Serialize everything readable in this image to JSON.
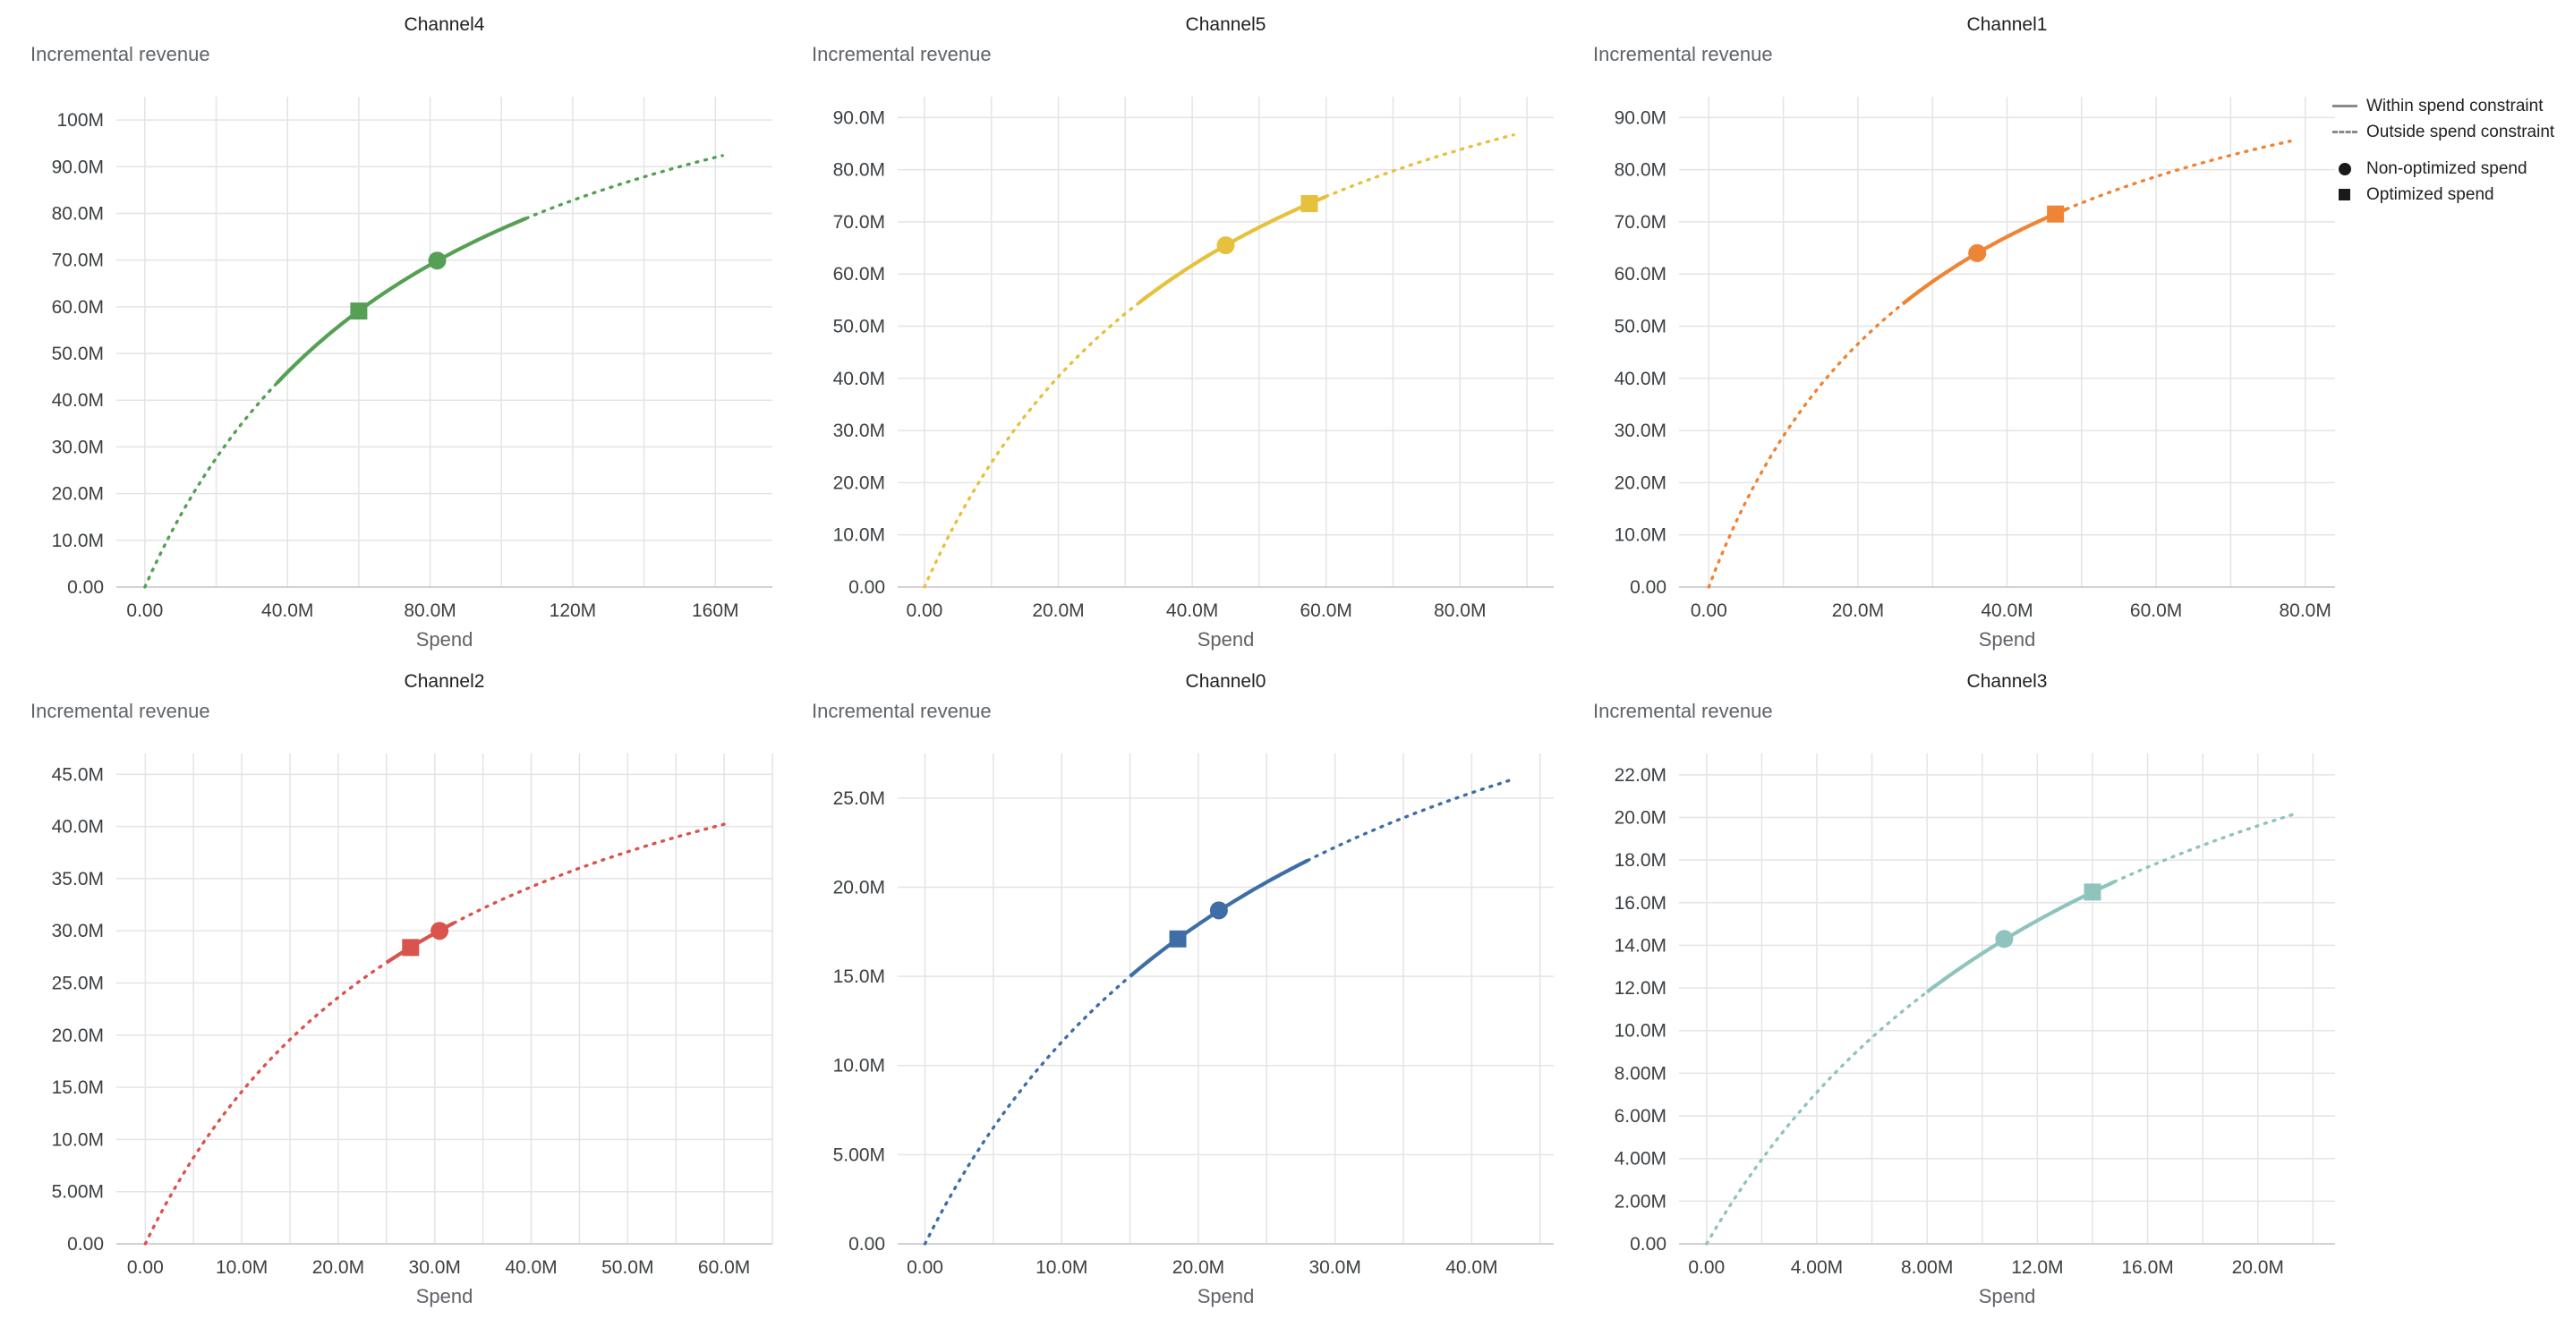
{
  "legend": {
    "within": "Within spend constraint",
    "outside": "Outside spend constraint",
    "non_optimized": "Non-optimized spend",
    "optimized": "Optimized spend",
    "line_color": "#8a8a8a",
    "marker_color": "#1a1a1a"
  },
  "chart_data": [
    {
      "type": "line",
      "title": "Channel4",
      "color": "#55a055",
      "xlabel": "Spend",
      "ylabel": "Incremental revenue",
      "x_range": [
        -8,
        176
      ],
      "y_range": [
        0,
        105
      ],
      "x_grid_step": 20,
      "x_ticks": [
        {
          "v": 0,
          "t": "0.00"
        },
        {
          "v": 40,
          "t": "40.0M"
        },
        {
          "v": 80,
          "t": "80.0M"
        },
        {
          "v": 120,
          "t": "120M"
        },
        {
          "v": 160,
          "t": "160M"
        }
      ],
      "y_ticks": [
        {
          "v": 0,
          "t": "0.00"
        },
        {
          "v": 10,
          "t": "10.0M"
        },
        {
          "v": 20,
          "t": "20.0M"
        },
        {
          "v": 30,
          "t": "30.0M"
        },
        {
          "v": 40,
          "t": "40.0M"
        },
        {
          "v": 50,
          "t": "50.0M"
        },
        {
          "v": 60,
          "t": "60.0M"
        },
        {
          "v": 70,
          "t": "70.0M"
        },
        {
          "v": 80,
          "t": "80.0M"
        },
        {
          "v": 90,
          "t": "90.0M"
        },
        {
          "v": 100,
          "t": "100M"
        }
      ],
      "curve": {
        "model": "hill: y = ymax*x/(x+k), units millions",
        "ymax": 138,
        "k": 80,
        "x_start": 0,
        "x_end": 162,
        "end_y": 92.4
      },
      "within_spend_constraint_range": [
        37,
        107
      ],
      "markers": {
        "non_optimized_spend": {
          "x": 82,
          "y": 69.9
        },
        "optimized_spend": {
          "x": 60,
          "y": 59.1
        }
      }
    },
    {
      "type": "line",
      "title": "Channel5",
      "color": "#e5c13d",
      "xlabel": "Spend",
      "ylabel": "Incremental revenue",
      "x_range": [
        -4,
        94
      ],
      "y_range": [
        0,
        94
      ],
      "x_grid_step": 10,
      "x_ticks": [
        {
          "v": 0,
          "t": "0.00"
        },
        {
          "v": 20,
          "t": "20.0M"
        },
        {
          "v": 40,
          "t": "40.0M"
        },
        {
          "v": 60,
          "t": "60.0M"
        },
        {
          "v": 80,
          "t": "80.0M"
        }
      ],
      "y_ticks": [
        {
          "v": 0,
          "t": "0.00"
        },
        {
          "v": 10,
          "t": "10.0M"
        },
        {
          "v": 20,
          "t": "20.0M"
        },
        {
          "v": 30,
          "t": "30.0M"
        },
        {
          "v": 40,
          "t": "40.0M"
        },
        {
          "v": 50,
          "t": "50.0M"
        },
        {
          "v": 60,
          "t": "60.0M"
        },
        {
          "v": 70,
          "t": "70.0M"
        },
        {
          "v": 80,
          "t": "80.0M"
        },
        {
          "v": 90,
          "t": "90.0M"
        }
      ],
      "curve": {
        "model": "hill: y = ymax*x/(x+k), units millions",
        "ymax": 131,
        "k": 45,
        "x_start": 0,
        "x_end": 88,
        "end_y": 86.7
      },
      "within_spend_constraint_range": [
        32,
        60
      ],
      "markers": {
        "non_optimized_spend": {
          "x": 45,
          "y": 65.5
        },
        "optimized_spend": {
          "x": 57.5,
          "y": 73.5
        }
      }
    },
    {
      "type": "line",
      "title": "Channel1",
      "color": "#ee8435",
      "xlabel": "Spend",
      "ylabel": "Incremental revenue",
      "x_range": [
        -4,
        84
      ],
      "y_range": [
        0,
        94
      ],
      "x_grid_step": 10,
      "x_ticks": [
        {
          "v": 0,
          "t": "0.00"
        },
        {
          "v": 20,
          "t": "20.0M"
        },
        {
          "v": 40,
          "t": "40.0M"
        },
        {
          "v": 60,
          "t": "60.0M"
        },
        {
          "v": 80,
          "t": "80.0M"
        }
      ],
      "y_ticks": [
        {
          "v": 0,
          "t": "0.00"
        },
        {
          "v": 10,
          "t": "10.0M"
        },
        {
          "v": 20,
          "t": "20.0M"
        },
        {
          "v": 30,
          "t": "30.0M"
        },
        {
          "v": 40,
          "t": "40.0M"
        },
        {
          "v": 50,
          "t": "50.0M"
        },
        {
          "v": 60,
          "t": "60.0M"
        },
        {
          "v": 70,
          "t": "70.0M"
        },
        {
          "v": 80,
          "t": "80.0M"
        },
        {
          "v": 90,
          "t": "90.0M"
        }
      ],
      "curve": {
        "model": "hill: y = ymax*x/(x+k), units millions",
        "ymax": 120,
        "k": 31.5,
        "x_start": 0,
        "x_end": 78,
        "end_y": 85.5
      },
      "within_spend_constraint_range": [
        26,
        48
      ],
      "markers": {
        "non_optimized_spend": {
          "x": 36,
          "y": 64.0
        },
        "optimized_spend": {
          "x": 46.5,
          "y": 71.5
        }
      }
    },
    {
      "type": "line",
      "title": "Channel2",
      "color": "#d9544d",
      "xlabel": "Spend",
      "ylabel": "Incremental revenue",
      "x_range": [
        -3,
        65
      ],
      "y_range": [
        0,
        47
      ],
      "x_grid_step": 5,
      "x_ticks": [
        {
          "v": 0,
          "t": "0.00"
        },
        {
          "v": 10,
          "t": "10.0M"
        },
        {
          "v": 20,
          "t": "20.0M"
        },
        {
          "v": 30,
          "t": "30.0M"
        },
        {
          "v": 40,
          "t": "40.0M"
        },
        {
          "v": 50,
          "t": "50.0M"
        },
        {
          "v": 60,
          "t": "60.0M"
        }
      ],
      "y_ticks": [
        {
          "v": 0,
          "t": "0.00"
        },
        {
          "v": 5,
          "t": "5.00M"
        },
        {
          "v": 10,
          "t": "10.0M"
        },
        {
          "v": 15,
          "t": "15.0M"
        },
        {
          "v": 20,
          "t": "20.0M"
        },
        {
          "v": 25,
          "t": "25.0M"
        },
        {
          "v": 30,
          "t": "30.0M"
        },
        {
          "v": 35,
          "t": "35.0M"
        },
        {
          "v": 40,
          "t": "40.0M"
        },
        {
          "v": 45,
          "t": "45.0M"
        }
      ],
      "curve": {
        "model": "hill: y = ymax*x/(x+k), units millions",
        "ymax": 62,
        "k": 32.5,
        "x_start": 0,
        "x_end": 60.5,
        "end_y": 40.2
      },
      "within_spend_constraint_range": [
        25,
        32
      ],
      "markers": {
        "non_optimized_spend": {
          "x": 30.5,
          "y": 30.0
        },
        "optimized_spend": {
          "x": 27.5,
          "y": 28.4
        }
      }
    },
    {
      "type": "line",
      "title": "Channel0",
      "color": "#3e6ea5",
      "xlabel": "Spend",
      "ylabel": "Incremental revenue",
      "x_range": [
        -2,
        46
      ],
      "y_range": [
        0,
        27.5
      ],
      "x_grid_step": 5,
      "x_ticks": [
        {
          "v": 0,
          "t": "0.00"
        },
        {
          "v": 10,
          "t": "10.0M"
        },
        {
          "v": 20,
          "t": "20.0M"
        },
        {
          "v": 30,
          "t": "30.0M"
        },
        {
          "v": 40,
          "t": "40.0M"
        }
      ],
      "y_ticks": [
        {
          "v": 0,
          "t": "0.00"
        },
        {
          "v": 5,
          "t": "5.00M"
        },
        {
          "v": 10,
          "t": "10.0M"
        },
        {
          "v": 15,
          "t": "15.0M"
        },
        {
          "v": 20,
          "t": "20.0M"
        },
        {
          "v": 25,
          "t": "25.0M"
        }
      ],
      "curve": {
        "model": "hill: y = ymax*x/(x+k), units millions",
        "ymax": 43,
        "k": 28,
        "x_start": 0,
        "x_end": 43,
        "end_y": 26.0
      },
      "within_spend_constraint_range": [
        15,
        28
      ],
      "markers": {
        "non_optimized_spend": {
          "x": 21.5,
          "y": 18.7
        },
        "optimized_spend": {
          "x": 18.5,
          "y": 17.1
        }
      }
    },
    {
      "type": "line",
      "title": "Channel3",
      "color": "#8ec4bd",
      "xlabel": "Spend",
      "ylabel": "Incremental revenue",
      "x_range": [
        -1,
        22.8
      ],
      "y_range": [
        0,
        23
      ],
      "x_grid_step": 2,
      "x_ticks": [
        {
          "v": 0,
          "t": "0.00"
        },
        {
          "v": 4,
          "t": "4.00M"
        },
        {
          "v": 8,
          "t": "8.00M"
        },
        {
          "v": 12,
          "t": "12.0M"
        },
        {
          "v": 16,
          "t": "16.0M"
        },
        {
          "v": 20,
          "t": "20.0M"
        }
      ],
      "y_ticks": [
        {
          "v": 0,
          "t": "0.00"
        },
        {
          "v": 2,
          "t": "2.00M"
        },
        {
          "v": 4,
          "t": "4.00M"
        },
        {
          "v": 6,
          "t": "6.00M"
        },
        {
          "v": 8,
          "t": "8.00M"
        },
        {
          "v": 10,
          "t": "10.0M"
        },
        {
          "v": 12,
          "t": "12.0M"
        },
        {
          "v": 14,
          "t": "14.0M"
        },
        {
          "v": 16,
          "t": "16.0M"
        },
        {
          "v": 18,
          "t": "18.0M"
        },
        {
          "v": 20,
          "t": "20.0M"
        },
        {
          "v": 22,
          "t": "22.0M"
        }
      ],
      "curve": {
        "model": "hill: y = ymax*x/(x+k), units millions",
        "ymax": 35,
        "k": 15.7,
        "x_start": 0,
        "x_end": 21.3,
        "end_y": 20.2
      },
      "within_spend_constraint_range": [
        8,
        14.8
      ],
      "markers": {
        "non_optimized_spend": {
          "x": 10.8,
          "y": 14.3
        },
        "optimized_spend": {
          "x": 14,
          "y": 16.5
        }
      }
    }
  ]
}
